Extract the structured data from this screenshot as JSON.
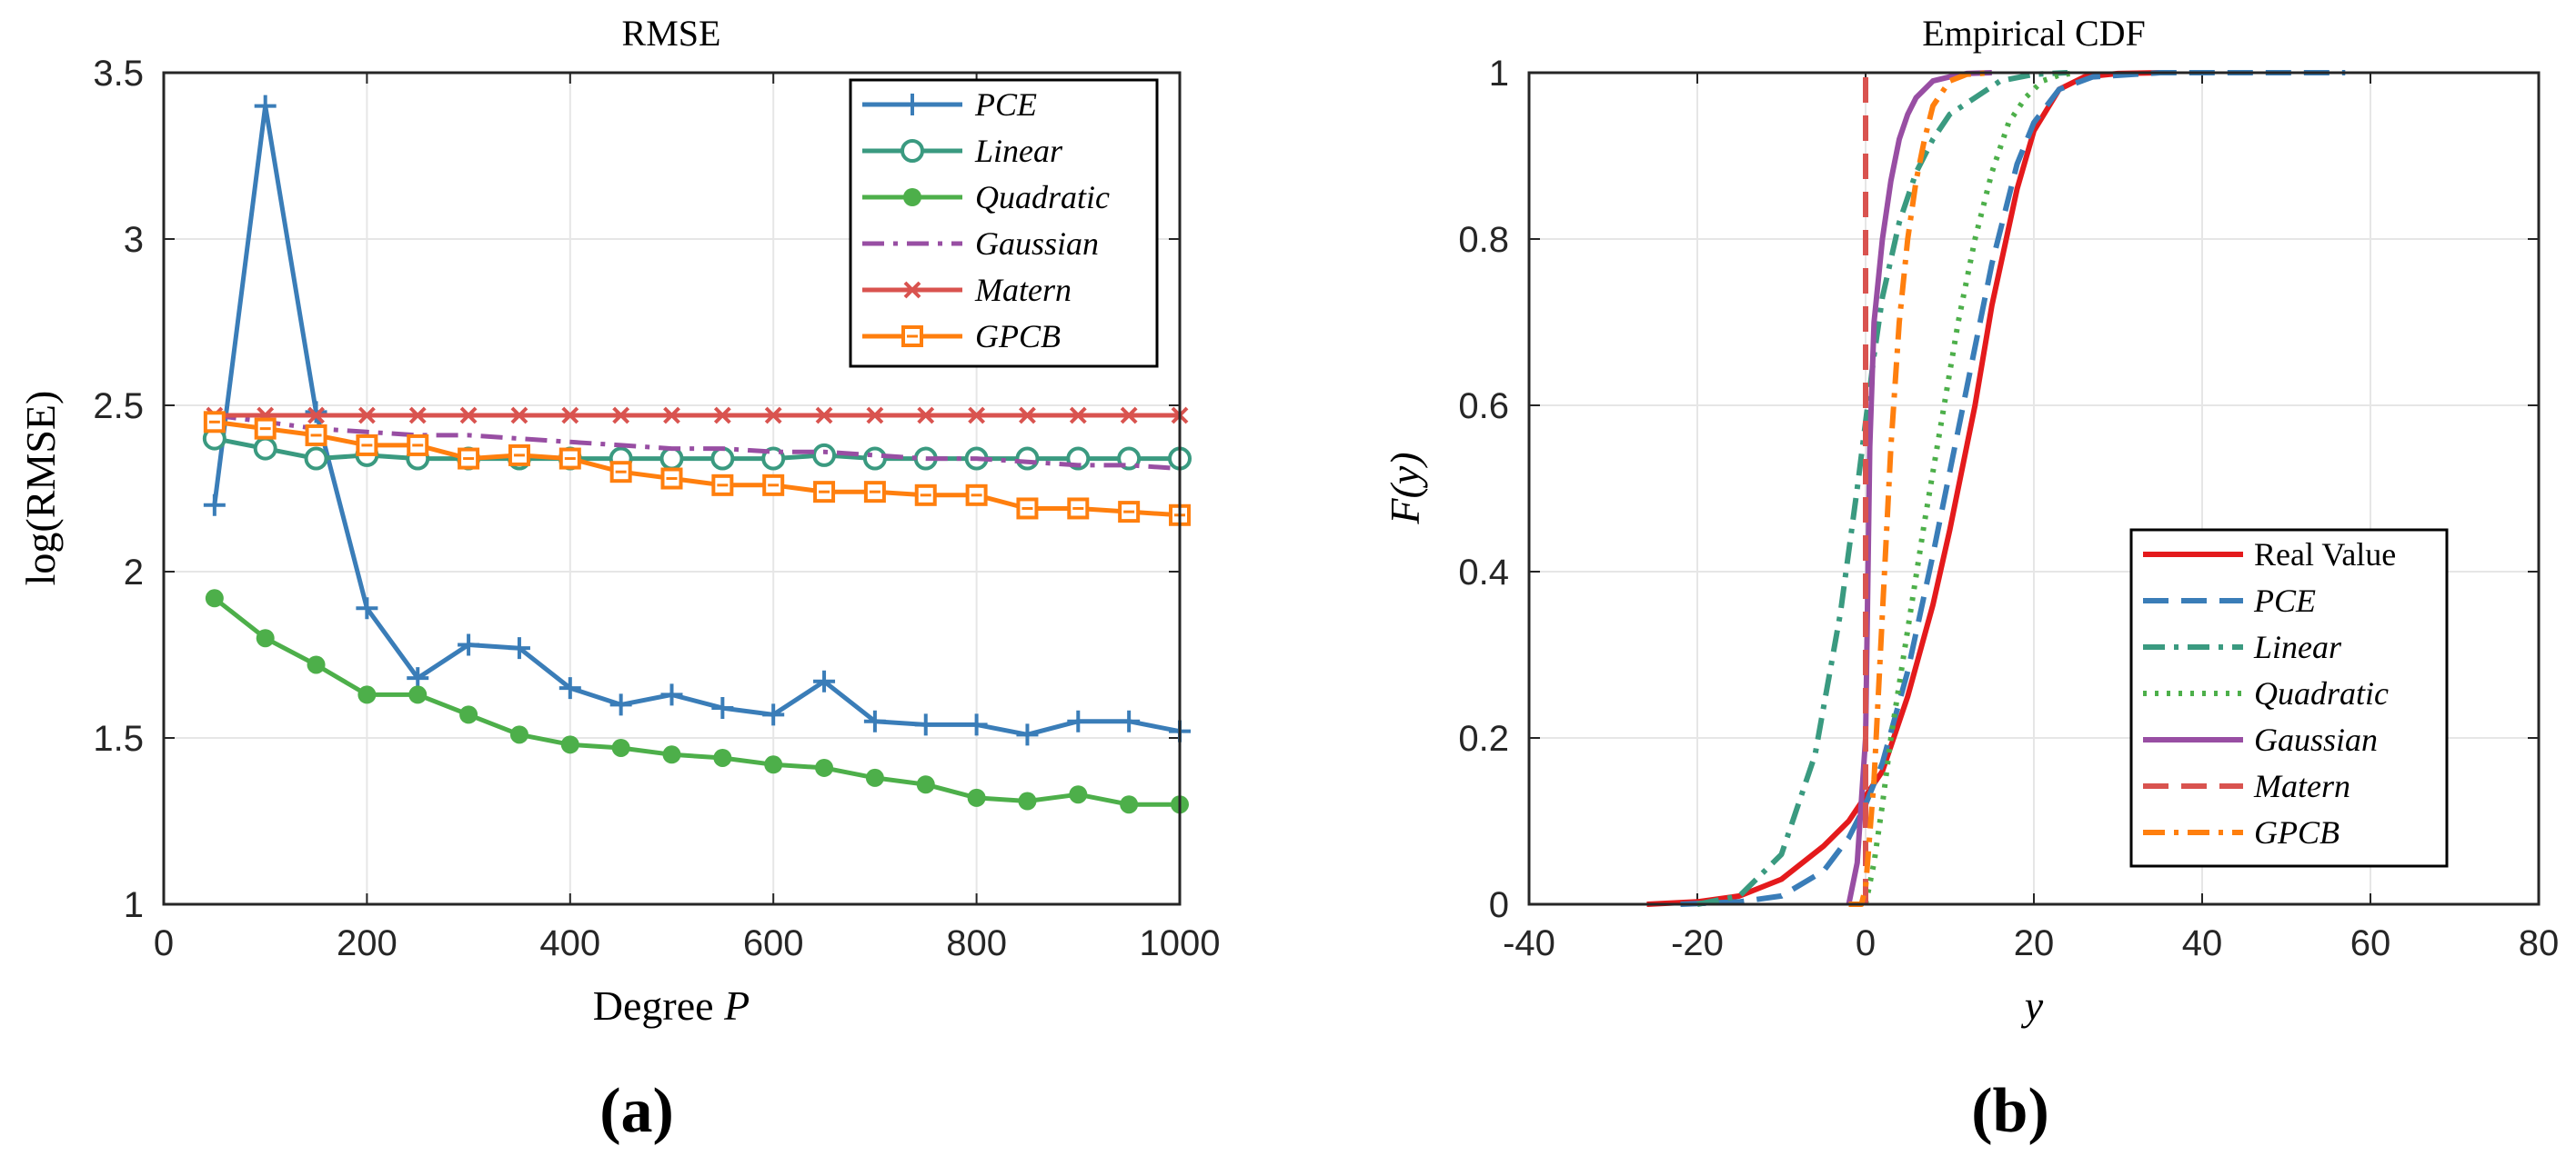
{
  "figure": {
    "panels": [
      {
        "label": "(a)"
      },
      {
        "label": "(b)"
      }
    ]
  },
  "chart_data": [
    {
      "type": "line",
      "title": "RMSE",
      "xlabel": "Degree P",
      "xlabel_text": "Degree ",
      "xlabel_var": "P",
      "ylabel": "log(RMSE)",
      "xlim": [
        0,
        1000
      ],
      "ylim": [
        1,
        3.5
      ],
      "xticks": [
        0,
        200,
        400,
        600,
        800,
        1000
      ],
      "yticks": [
        1,
        1.5,
        2,
        2.5,
        3,
        3.5
      ],
      "grid": true,
      "legend_position": "top-right",
      "x": [
        50,
        100,
        150,
        200,
        250,
        300,
        350,
        400,
        450,
        500,
        550,
        600,
        650,
        700,
        750,
        800,
        850,
        900,
        950,
        1000
      ],
      "series": [
        {
          "name": "PCE",
          "color": "#3a7db8",
          "marker": "plus",
          "style": "solid",
          "values": [
            2.2,
            3.4,
            2.48,
            1.89,
            1.68,
            1.78,
            1.77,
            1.65,
            1.6,
            1.63,
            1.59,
            1.57,
            1.67,
            1.55,
            1.54,
            1.54,
            1.51,
            1.55,
            1.55,
            1.52
          ]
        },
        {
          "name": "Linear",
          "color": "#3a9a80",
          "marker": "circle",
          "style": "solid",
          "values": [
            2.4,
            2.37,
            2.34,
            2.35,
            2.34,
            2.34,
            2.34,
            2.34,
            2.34,
            2.34,
            2.34,
            2.34,
            2.35,
            2.34,
            2.34,
            2.34,
            2.34,
            2.34,
            2.34,
            2.34
          ]
        },
        {
          "name": "Quadratic",
          "color": "#4daf4a",
          "marker": "dot",
          "style": "solid",
          "values": [
            1.92,
            1.8,
            1.72,
            1.63,
            1.63,
            1.57,
            1.51,
            1.48,
            1.47,
            1.45,
            1.44,
            1.42,
            1.41,
            1.38,
            1.36,
            1.32,
            1.31,
            1.33,
            1.3,
            1.3
          ]
        },
        {
          "name": "Gaussian",
          "color": "#984ea3",
          "marker": "none",
          "style": "dashdot",
          "values": [
            2.47,
            2.45,
            2.43,
            2.42,
            2.41,
            2.41,
            2.4,
            2.39,
            2.38,
            2.37,
            2.37,
            2.36,
            2.36,
            2.35,
            2.34,
            2.34,
            2.33,
            2.32,
            2.32,
            2.31
          ]
        },
        {
          "name": "Matern",
          "color": "#d9534f",
          "marker": "cross",
          "style": "solid",
          "values": [
            2.47,
            2.47,
            2.47,
            2.47,
            2.47,
            2.47,
            2.47,
            2.47,
            2.47,
            2.47,
            2.47,
            2.47,
            2.47,
            2.47,
            2.47,
            2.47,
            2.47,
            2.47,
            2.47,
            2.47
          ]
        },
        {
          "name": "GPCB",
          "color": "#ff7f0e",
          "marker": "square",
          "style": "solid",
          "values": [
            2.45,
            2.43,
            2.41,
            2.38,
            2.38,
            2.34,
            2.35,
            2.34,
            2.3,
            2.28,
            2.26,
            2.26,
            2.24,
            2.24,
            2.23,
            2.23,
            2.19,
            2.19,
            2.18,
            2.17
          ]
        }
      ]
    },
    {
      "type": "line",
      "title": "Empirical CDF",
      "xlabel": "y",
      "ylabel": "F(y)",
      "xlim": [
        -40,
        80
      ],
      "ylim": [
        0,
        1
      ],
      "xticks": [
        -40,
        -20,
        0,
        20,
        40,
        60,
        80
      ],
      "yticks": [
        0,
        0.2,
        0.4,
        0.6,
        0.8,
        1
      ],
      "grid": true,
      "legend_position": "bottom-right",
      "series": [
        {
          "name": "Real Value",
          "color": "#e41a1c",
          "style": "solid",
          "italic": false,
          "x": [
            -26,
            -20,
            -15,
            -10,
            -5,
            -2,
            0,
            2,
            5,
            8,
            10,
            13,
            15,
            18,
            20,
            23,
            26,
            30,
            35
          ],
          "y": [
            0,
            0.003,
            0.01,
            0.03,
            0.07,
            0.1,
            0.13,
            0.16,
            0.25,
            0.36,
            0.45,
            0.6,
            0.72,
            0.86,
            0.93,
            0.98,
            0.995,
            0.999,
            1
          ]
        },
        {
          "name": "PCE",
          "color": "#3a7db8",
          "style": "dashed",
          "italic": true,
          "x": [
            -22,
            -15,
            -10,
            -5,
            -2,
            0,
            2,
            5,
            8,
            10,
            13,
            15,
            18,
            20,
            23,
            27,
            35,
            57
          ],
          "y": [
            0,
            0.003,
            0.01,
            0.04,
            0.08,
            0.12,
            0.17,
            0.28,
            0.42,
            0.52,
            0.67,
            0.77,
            0.89,
            0.94,
            0.98,
            0.995,
            1,
            1
          ]
        },
        {
          "name": "Linear",
          "color": "#3a9a80",
          "style": "dashdot",
          "italic": true,
          "x": [
            -20,
            -15,
            -10,
            -6,
            -3,
            -1,
            0,
            1,
            2,
            4,
            6,
            8,
            10,
            13,
            16,
            20,
            24
          ],
          "y": [
            0,
            0.01,
            0.06,
            0.18,
            0.35,
            0.5,
            0.58,
            0.66,
            0.73,
            0.82,
            0.88,
            0.92,
            0.95,
            0.97,
            0.99,
            0.998,
            1
          ]
        },
        {
          "name": "Quadratic",
          "color": "#4daf4a",
          "style": "dotted",
          "italic": true,
          "x": [
            0,
            1,
            2,
            3,
            5,
            7,
            9,
            11,
            13,
            15,
            17,
            19,
            21,
            23,
            25
          ],
          "y": [
            0,
            0.05,
            0.12,
            0.2,
            0.33,
            0.46,
            0.58,
            0.7,
            0.8,
            0.88,
            0.94,
            0.97,
            0.99,
            0.997,
            1
          ]
        },
        {
          "name": "Gaussian",
          "color": "#984ea3",
          "style": "solid",
          "italic": true,
          "x": [
            -2,
            -1,
            0,
            0.5,
            1,
            2,
            3,
            4,
            5,
            6,
            8,
            10,
            12,
            15
          ],
          "y": [
            0,
            0.05,
            0.2,
            0.55,
            0.7,
            0.8,
            0.87,
            0.92,
            0.95,
            0.97,
            0.99,
            0.995,
            0.999,
            1
          ]
        },
        {
          "name": "Matern",
          "color": "#d9534f",
          "style": "dashed",
          "italic": true,
          "x": [
            0,
            0
          ],
          "y": [
            0,
            1
          ]
        },
        {
          "name": "GPCB",
          "color": "#ff7f0e",
          "style": "dashdot",
          "italic": true,
          "x": [
            -2,
            -0.5,
            0,
            1,
            2,
            3,
            4,
            5,
            6,
            7,
            8,
            10,
            12,
            15
          ],
          "y": [
            0,
            0,
            0.02,
            0.15,
            0.35,
            0.55,
            0.7,
            0.8,
            0.87,
            0.92,
            0.96,
            0.99,
            0.998,
            1
          ]
        }
      ]
    }
  ]
}
